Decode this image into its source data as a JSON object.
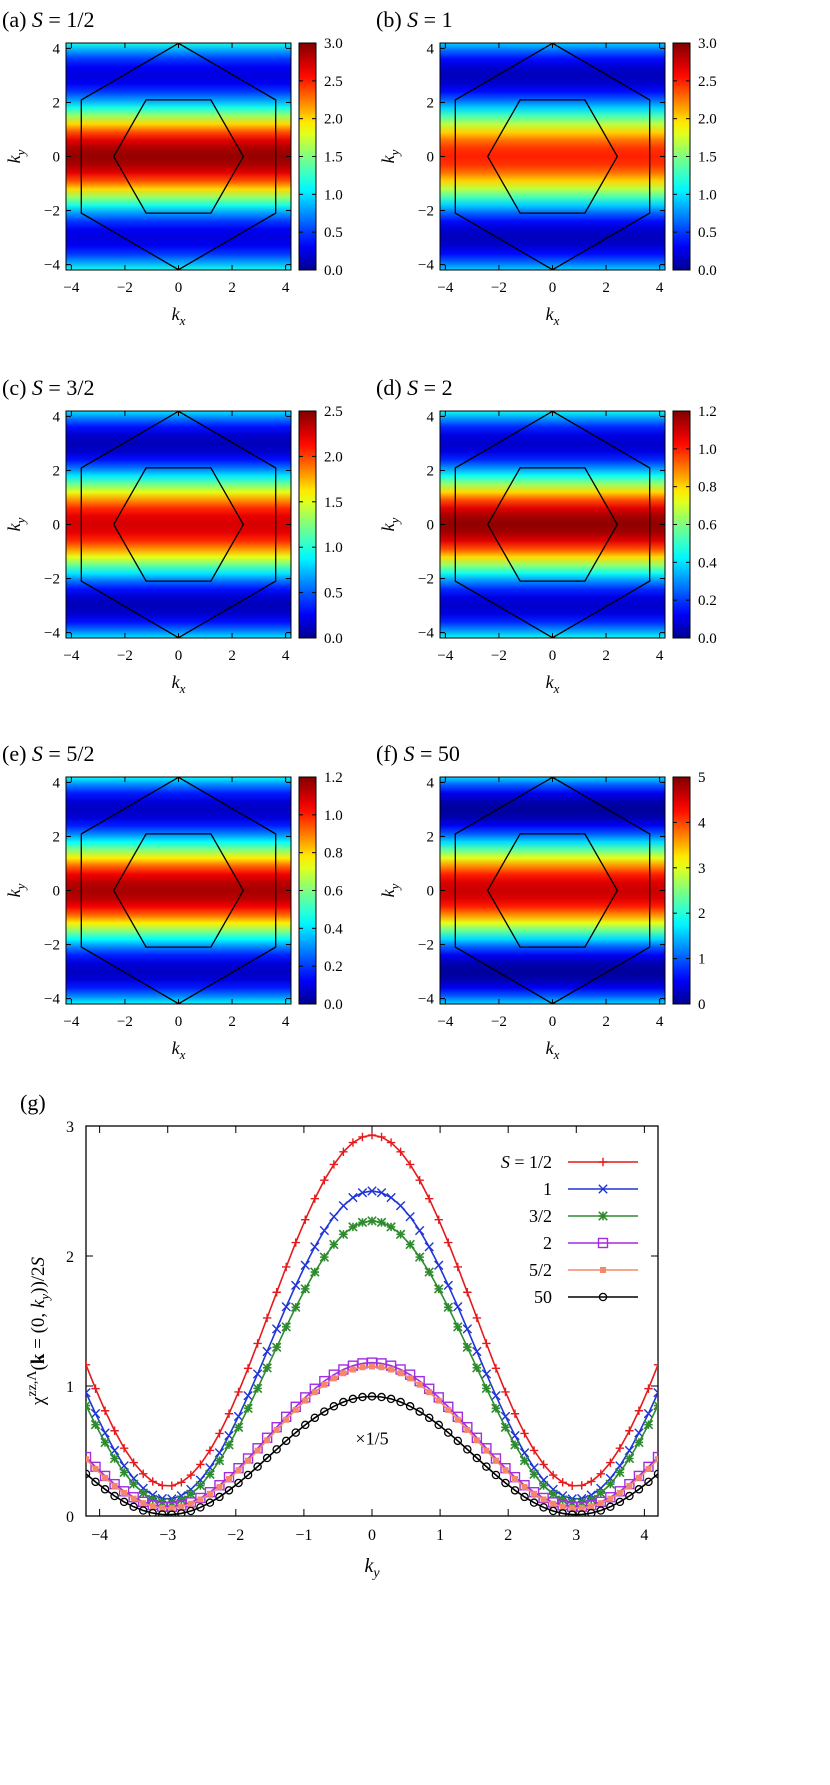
{
  "chart_data": [
    {
      "type": "heatmap",
      "panel": "(a)",
      "title_var": "S",
      "title_value": "1/2",
      "xlabel_main": "k",
      "xlabel_sub": "x",
      "ylabel_main": "k",
      "ylabel_sub": "y",
      "x_range": [
        -4.2,
        4.2
      ],
      "y_range": [
        -4.2,
        4.2
      ],
      "x_ticks": [
        -4,
        -2,
        0,
        2,
        4
      ],
      "y_ticks": [
        -4,
        -2,
        0,
        2,
        4
      ],
      "colorbar_range": [
        0,
        3.0
      ],
      "colorbar_ticks": [
        0,
        0.5,
        1.0,
        1.5,
        2.0,
        2.5,
        3.0
      ],
      "colorbar_tick_labels": [
        "0.0",
        "0.5",
        "1.0",
        "1.5",
        "2.0",
        "2.5",
        "3.0"
      ],
      "peak_value": 2.93,
      "min_value": 0.23
    },
    {
      "type": "heatmap",
      "panel": "(b)",
      "title_var": "S",
      "title_value": "1",
      "xlabel_main": "k",
      "xlabel_sub": "x",
      "ylabel_main": "k",
      "ylabel_sub": "y",
      "x_range": [
        -4.2,
        4.2
      ],
      "y_range": [
        -4.2,
        4.2
      ],
      "x_ticks": [
        -4,
        -2,
        0,
        2,
        4
      ],
      "y_ticks": [
        -4,
        -2,
        0,
        2,
        4
      ],
      "colorbar_range": [
        0,
        3.0
      ],
      "colorbar_ticks": [
        0,
        0.5,
        1.0,
        1.5,
        2.0,
        2.5,
        3.0
      ],
      "colorbar_tick_labels": [
        "0.0",
        "0.5",
        "1.0",
        "1.5",
        "2.0",
        "2.5",
        "3.0"
      ],
      "peak_value": 2.5,
      "min_value": 0.13
    },
    {
      "type": "heatmap",
      "panel": "(c)",
      "title_var": "S",
      "title_value": "3/2",
      "xlabel_main": "k",
      "xlabel_sub": "x",
      "ylabel_main": "k",
      "ylabel_sub": "y",
      "x_range": [
        -4.2,
        4.2
      ],
      "y_range": [
        -4.2,
        4.2
      ],
      "x_ticks": [
        -4,
        -2,
        0,
        2,
        4
      ],
      "y_ticks": [
        -4,
        -2,
        0,
        2,
        4
      ],
      "colorbar_range": [
        0,
        2.5
      ],
      "colorbar_ticks": [
        0,
        0.5,
        1.0,
        1.5,
        2.0,
        2.5
      ],
      "colorbar_tick_labels": [
        "0.0",
        "0.5",
        "1.0",
        "1.5",
        "2.0",
        "2.5"
      ],
      "peak_value": 2.27,
      "min_value": 0.1
    },
    {
      "type": "heatmap",
      "panel": "(d)",
      "title_var": "S",
      "title_value": "2",
      "xlabel_main": "k",
      "xlabel_sub": "x",
      "ylabel_main": "k",
      "ylabel_sub": "y",
      "x_range": [
        -4.2,
        4.2
      ],
      "y_range": [
        -4.2,
        4.2
      ],
      "x_ticks": [
        -4,
        -2,
        0,
        2,
        4
      ],
      "y_ticks": [
        -4,
        -2,
        0,
        2,
        4
      ],
      "colorbar_range": [
        0,
        1.2
      ],
      "colorbar_ticks": [
        0,
        0.2,
        0.4,
        0.6,
        0.8,
        1.0,
        1.2
      ],
      "colorbar_tick_labels": [
        "0.0",
        "0.2",
        "0.4",
        "0.6",
        "0.8",
        "1.0",
        "1.2"
      ],
      "peak_value": 1.18,
      "min_value": 0.07
    },
    {
      "type": "heatmap",
      "panel": "(e)",
      "title_var": "S",
      "title_value": "5/2",
      "xlabel_main": "k",
      "xlabel_sub": "x",
      "ylabel_main": "k",
      "ylabel_sub": "y",
      "x_range": [
        -4.2,
        4.2
      ],
      "y_range": [
        -4.2,
        4.2
      ],
      "x_ticks": [
        -4,
        -2,
        0,
        2,
        4
      ],
      "y_ticks": [
        -4,
        -2,
        0,
        2,
        4
      ],
      "colorbar_range": [
        0,
        1.2
      ],
      "colorbar_ticks": [
        0,
        0.2,
        0.4,
        0.6,
        0.8,
        1.0,
        1.2
      ],
      "colorbar_tick_labels": [
        "0.0",
        "0.2",
        "0.4",
        "0.6",
        "0.8",
        "1.0",
        "1.2"
      ],
      "peak_value": 1.15,
      "min_value": 0.06
    },
    {
      "type": "heatmap",
      "panel": "(f)",
      "title_var": "S",
      "title_value": "50",
      "xlabel_main": "k",
      "xlabel_sub": "x",
      "ylabel_main": "k",
      "ylabel_sub": "y",
      "x_range": [
        -4.2,
        4.2
      ],
      "y_range": [
        -4.2,
        4.2
      ],
      "x_ticks": [
        -4,
        -2,
        0,
        2,
        4
      ],
      "y_ticks": [
        -4,
        -2,
        0,
        2,
        4
      ],
      "colorbar_range": [
        0,
        5
      ],
      "colorbar_ticks": [
        0,
        1,
        2,
        3,
        4,
        5
      ],
      "colorbar_tick_labels": [
        "0",
        "1",
        "2",
        "3",
        "4",
        "5"
      ],
      "peak_value": 4.6,
      "min_value": 0.05
    },
    {
      "type": "line",
      "panel": "(g)",
      "xlabel_main": "k",
      "xlabel_sub": "y",
      "ylabel_parts": {
        "chi": "χ",
        "sup": "zz,Λ",
        "open": "(",
        "k": "k",
        "eq": " = (0, ",
        "ky": "k",
        "ky_sub": "y",
        "close": "))/2",
        "S": "S"
      },
      "x_range": [
        -4.2,
        4.2
      ],
      "y_range": [
        0,
        3
      ],
      "x_ticks": [
        -4,
        -3,
        -2,
        -1,
        0,
        1,
        2,
        3,
        4
      ],
      "y_ticks": [
        0,
        1,
        2,
        3
      ],
      "annotation": "×1/5",
      "legend_position": "top-right",
      "legend_first_prefix": "S",
      "sample_points": 60,
      "series": [
        {
          "label": "1/2",
          "prefix": true,
          "color": "#e41a1c",
          "marker": "plus",
          "max": 2.93,
          "min": 0.23
        },
        {
          "label": "1",
          "color": "#1f35d6",
          "marker": "cross",
          "max": 2.5,
          "min": 0.13
        },
        {
          "label": "3/2",
          "color": "#2e8b2e",
          "marker": "star",
          "max": 2.27,
          "min": 0.1
        },
        {
          "label": "2",
          "color": "#a12de0",
          "marker": "square",
          "max": 1.18,
          "min": 0.07
        },
        {
          "label": "5/2",
          "color": "#f5886a",
          "marker": "filled-square",
          "max": 1.15,
          "min": 0.06
        },
        {
          "label": "50",
          "color": "#000000",
          "marker": "circle",
          "max": 0.92,
          "min": 0.01
        }
      ]
    }
  ]
}
